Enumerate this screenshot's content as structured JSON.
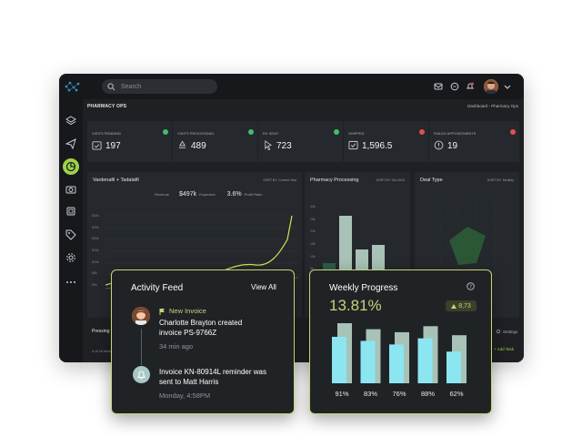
{
  "topbar": {
    "search_placeholder": "Search"
  },
  "page": {
    "title": "PHARMACY OPS",
    "breadcrumb_root": "Dashboard",
    "breadcrumb_current": "Pharmacy Ops"
  },
  "stats": [
    {
      "label": "VISITS PENDING",
      "value": "197",
      "badge_color": "#3fbf6b"
    },
    {
      "label": "VISITS PROCESSING",
      "value": "489",
      "badge_color": "#3fbf6b"
    },
    {
      "label": "RX SENT",
      "value": "723",
      "badge_color": "#3fbf6b"
    },
    {
      "label": "SHIPPED",
      "value": "1,596.5",
      "badge_color": "#e05050"
    },
    {
      "label": "FAILED APPOINTMENTS",
      "value": "19",
      "badge_color": "#e05050"
    }
  ],
  "panels": {
    "line": {
      "title": "Vardenafil + Tadalafil",
      "sort": "SORT BY: Current Year",
      "revenue_label": "Revenue",
      "revenue_value": "$497k",
      "expenses_label": "Expenses",
      "profit_value": "3.6%",
      "profit_label": "Profit Ratio",
      "y_ticks": [
        "$30k",
        "$25k",
        "$20k",
        "$15k",
        "$10k",
        "$5k",
        "$0k"
      ]
    },
    "bar": {
      "title": "Pharmacy Processing",
      "sort": "SORT BY: Oct 2024",
      "y_ticks": [
        "30k",
        "25k",
        "20k",
        "15k",
        "10k",
        "5k",
        "0k"
      ]
    },
    "deal": {
      "title": "Deal Type",
      "sort": "SORT BY: Monthly"
    }
  },
  "lower": {
    "table_title": "Pressing T",
    "pagination": "4 of 10 items",
    "settings_label": "Settings",
    "add_task_label": "+ Add Task"
  },
  "activity": {
    "title": "Activity Feed",
    "view_all": "View All",
    "item1_tag": "New Invoice",
    "item1_text": "Charlotte Brayton created invoice PS-9766Z",
    "item1_time": "34 min ago",
    "item2_text": "Invoice KN-80914L reminder was sent to Matt Harris",
    "item2_time": "Monday, 4:58PM"
  },
  "weekly": {
    "title": "Weekly Progress",
    "percent": "13.81%",
    "change": "8,73",
    "bars": [
      {
        "label": "91%",
        "value": 91,
        "back": 100
      },
      {
        "label": "83%",
        "value": 83,
        "back": 90
      },
      {
        "label": "76%",
        "value": 76,
        "back": 85
      },
      {
        "label": "88%",
        "value": 88,
        "back": 95
      },
      {
        "label": "62%",
        "value": 62,
        "back": 80
      }
    ]
  },
  "colors": {
    "accent": "#9fd14a",
    "cyan": "#8be6f2",
    "line": "#d6e25a",
    "card_border": "#c3d676"
  }
}
